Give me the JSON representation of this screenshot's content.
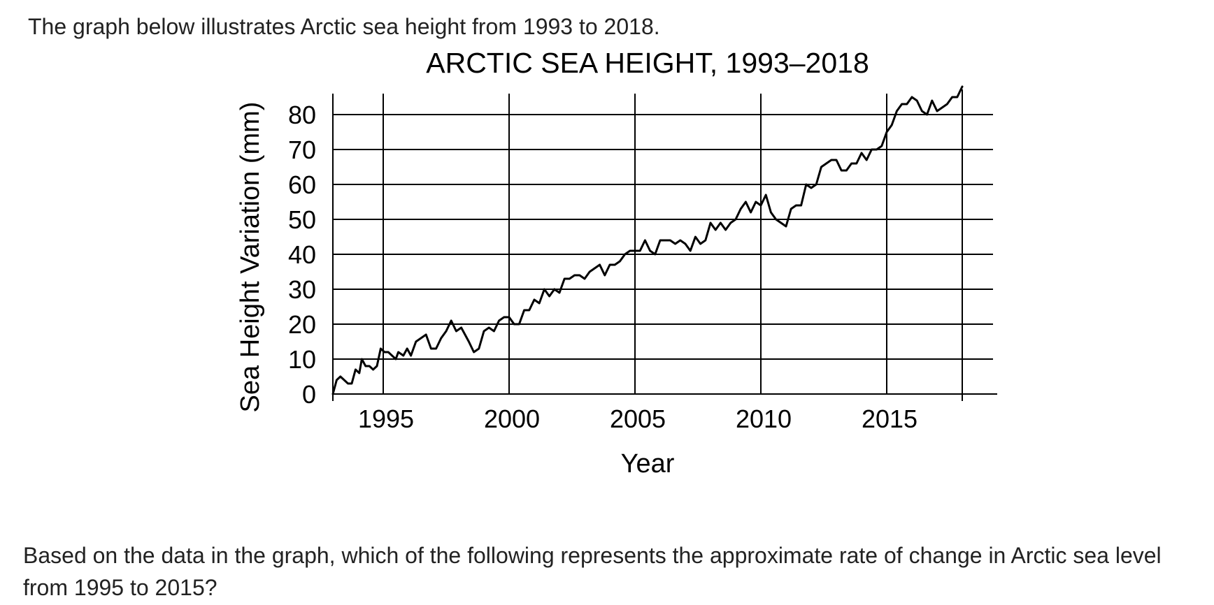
{
  "intro_text": "The graph below illustrates Arctic sea height from 1993 to 2018.",
  "question_text": "Based on the data in the graph, which of the following represents the approximate rate of change in Arctic sea level from 1995 to 2015?",
  "chart_data": {
    "type": "line",
    "title": "ARCTIC SEA HEIGHT, 1993–2018",
    "xlabel": "Year",
    "ylabel": "Sea Height Variation (mm)",
    "xlim": [
      1993,
      2018
    ],
    "ylim": [
      0,
      86
    ],
    "x_ticks": [
      1995,
      2000,
      2005,
      2010,
      2015
    ],
    "y_ticks": [
      0,
      10,
      20,
      30,
      40,
      50,
      60,
      70,
      80
    ],
    "grid": true,
    "legend": "none",
    "line_color": "#000000",
    "series": [
      {
        "x": [
          1993.0,
          1993.15,
          1993.3,
          1993.45,
          1993.6,
          1993.75,
          1993.9,
          1994.05,
          1994.15,
          1994.3,
          1994.45,
          1994.6,
          1994.75,
          1994.9,
          1995.05,
          1995.2,
          1995.35,
          1995.5,
          1995.6,
          1995.8,
          1995.95,
          1996.1,
          1996.3,
          1996.5,
          1996.7,
          1996.9,
          1997.1,
          1997.3,
          1997.5,
          1997.7,
          1997.9,
          1998.1,
          1998.4,
          1998.6,
          1998.8,
          1999.0,
          1999.2,
          1999.4,
          1999.6,
          1999.8,
          2000.0,
          2000.2,
          2000.4,
          2000.6,
          2000.8,
          2001.0,
          2001.2,
          2001.4,
          2001.6,
          2001.8,
          2002.0,
          2002.2,
          2002.4,
          2002.6,
          2002.8,
          2003.0,
          2003.2,
          2003.4,
          2003.6,
          2003.8,
          2004.0,
          2004.2,
          2004.4,
          2004.6,
          2004.8,
          2005.0,
          2005.2,
          2005.4,
          2005.6,
          2005.8,
          2006.0,
          2006.2,
          2006.4,
          2006.6,
          2006.8,
          2007.0,
          2007.2,
          2007.4,
          2007.6,
          2007.8,
          2008.0,
          2008.2,
          2008.4,
          2008.6,
          2008.8,
          2009.0,
          2009.2,
          2009.4,
          2009.6,
          2009.8,
          2010.0,
          2010.2,
          2010.4,
          2010.6,
          2010.8,
          2011.0,
          2011.2,
          2011.4,
          2011.6,
          2011.8,
          2012.0,
          2012.2,
          2012.4,
          2012.6,
          2012.8,
          2013.0,
          2013.2,
          2013.4,
          2013.6,
          2013.8,
          2014.0,
          2014.2,
          2014.4,
          2014.6,
          2014.8,
          2015.0,
          2015.2,
          2015.4,
          2015.6,
          2015.8,
          2016.0,
          2016.2,
          2016.4,
          2016.6,
          2016.8,
          2017.0,
          2017.2,
          2017.4,
          2017.6,
          2017.8,
          2018.0
        ],
        "y": [
          0,
          4,
          5,
          4,
          3,
          3,
          7,
          6,
          10,
          8,
          8,
          7,
          8,
          13,
          12,
          12,
          11,
          10,
          12,
          11,
          13,
          11,
          15,
          16,
          17,
          13,
          13,
          16,
          18,
          21,
          18,
          19,
          15,
          12,
          13,
          18,
          19,
          18,
          21,
          22,
          22,
          20,
          20,
          24,
          24,
          27,
          26,
          30,
          28,
          30,
          29,
          33,
          33,
          34,
          34,
          33,
          35,
          36,
          37,
          34,
          37,
          37,
          38,
          40,
          41,
          41,
          41,
          44,
          41,
          40,
          44,
          44,
          44,
          43,
          44,
          43,
          41,
          45,
          43,
          44,
          49,
          47,
          49,
          47,
          49,
          50,
          53,
          55,
          52,
          55,
          54,
          57,
          52,
          50,
          49,
          48,
          53,
          54,
          54,
          60,
          59,
          60,
          65,
          66,
          67,
          67,
          64,
          64,
          66,
          66,
          69,
          67,
          70,
          70,
          71,
          75,
          77,
          81,
          83,
          83,
          85,
          84,
          81,
          80,
          84,
          81,
          82,
          83,
          85,
          85,
          88
        ]
      }
    ]
  }
}
